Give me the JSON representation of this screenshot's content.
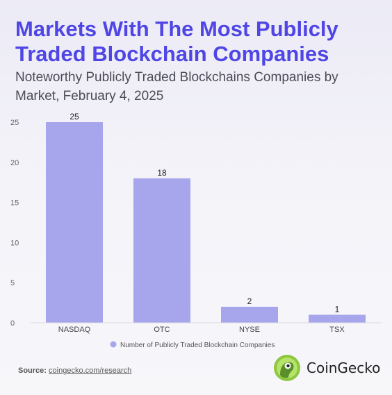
{
  "header": {
    "title": "Markets With The Most Publicly Traded Blockchain Companies",
    "subtitle": "Noteworthy Publicly Traded Blockchains Companies by Market, February 4, 2025"
  },
  "chart_data": {
    "type": "bar",
    "categories": [
      "NASDAQ",
      "OTC",
      "NYSE",
      "TSX"
    ],
    "series": [
      {
        "name": "Number of Publicly Traded Blockchain Companies",
        "values": [
          25,
          18,
          2,
          1
        ]
      }
    ],
    "ylim": [
      0,
      25
    ],
    "yticks": [
      0,
      5,
      10,
      15,
      20,
      25
    ],
    "grid": false,
    "legend": "bottom",
    "bar_color": "#a7a5ec"
  },
  "footer": {
    "source_label": "Source:",
    "source_link": "coingecko.com/research",
    "brand": "CoinGecko"
  },
  "colors": {
    "title": "#4f46e5",
    "bar": "#a7a5ec",
    "legend_marker": "#a7a5ec"
  }
}
